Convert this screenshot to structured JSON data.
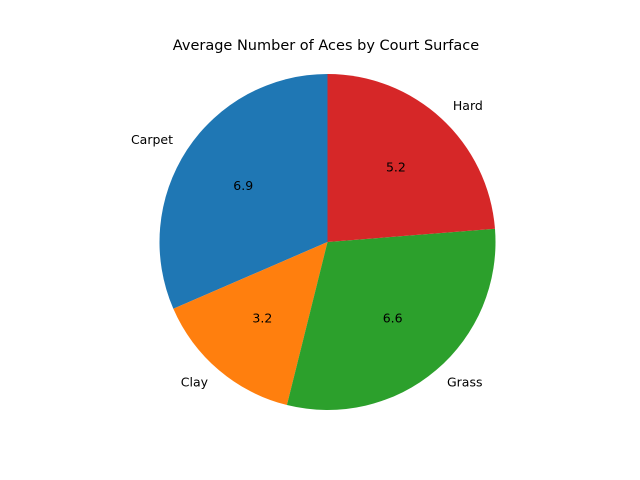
{
  "chart_data": {
    "type": "pie",
    "title": "Average Number of Aces by Court Surface",
    "categories": [
      "Carpet",
      "Clay",
      "Grass",
      "Hard"
    ],
    "values": [
      6.9,
      3.2,
      6.6,
      5.2
    ],
    "value_labels": [
      "6.9",
      "3.2",
      "6.6",
      "5.2"
    ],
    "colors": [
      "#1f77b4",
      "#ff7f0e",
      "#2ca02c",
      "#d62728"
    ],
    "start_angle_deg": 90,
    "direction": "counterclockwise",
    "legend": "none"
  }
}
